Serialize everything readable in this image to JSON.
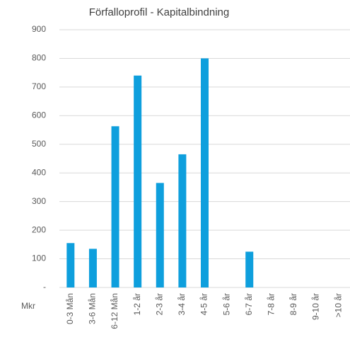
{
  "chart_data": {
    "type": "bar",
    "title": "Förfalloprofil - Kapitalbindning",
    "y_axis_label": "Mkr",
    "categories": [
      "0-3 Mån",
      "3-6 Mån",
      "6-12 Mån",
      "1-2 år",
      "2-3 år",
      "3-4 år",
      "4-5 år",
      "5-6 år",
      "6-7 år",
      "7-8 år",
      "8-9 år",
      "9-10 år",
      ">10 år"
    ],
    "values": [
      155,
      135,
      563,
      740,
      365,
      465,
      800,
      0,
      125,
      0,
      0,
      0,
      0
    ],
    "color": "#0e9fdd",
    "ylim": [
      0,
      900
    ],
    "yticks": [
      {
        "value": 0,
        "label": "-"
      },
      100,
      200,
      300,
      400,
      500,
      600,
      700,
      800,
      900
    ],
    "grid": true
  }
}
